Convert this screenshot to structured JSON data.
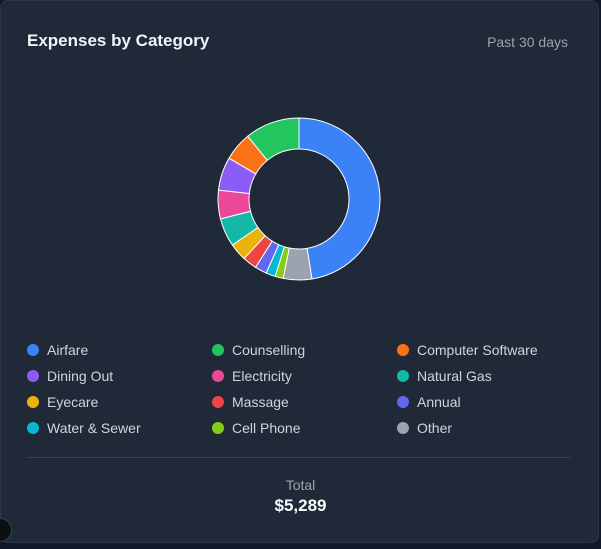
{
  "card": {
    "title": "Expenses by Category",
    "period": "Past 30 days"
  },
  "chart_data": {
    "type": "pie",
    "style": "donut",
    "categories": [
      "Airfare",
      "Other",
      "Cell Phone",
      "Water & Sewer",
      "Annual",
      "Massage",
      "Eyecare",
      "Natural Gas",
      "Electricity",
      "Dining Out",
      "Computer Software",
      "Counselling"
    ],
    "values": [
      50.0,
      6.0,
      1.7,
      2.0,
      2.5,
      3.0,
      3.7,
      6.0,
      6.0,
      7.0,
      6.0,
      11.5
    ],
    "colors": [
      "#3b82f6",
      "#9ca3af",
      "#84cc16",
      "#06b6d4",
      "#6366f1",
      "#ef4444",
      "#eab308",
      "#14b8a6",
      "#ec4899",
      "#8b5cf6",
      "#f97316",
      "#22c55e"
    ]
  },
  "legend": [
    {
      "label": "Airfare",
      "color": "#3b82f6"
    },
    {
      "label": "Counselling",
      "color": "#22c55e"
    },
    {
      "label": "Computer Software",
      "color": "#f97316"
    },
    {
      "label": "Dining Out",
      "color": "#8b5cf6"
    },
    {
      "label": "Electricity",
      "color": "#ec4899"
    },
    {
      "label": "Natural Gas",
      "color": "#14b8a6"
    },
    {
      "label": "Eyecare",
      "color": "#eab308"
    },
    {
      "label": "Massage",
      "color": "#ef4444"
    },
    {
      "label": "Annual",
      "color": "#6366f1"
    },
    {
      "label": "Water & Sewer",
      "color": "#06b6d4"
    },
    {
      "label": "Cell Phone",
      "color": "#84cc16"
    },
    {
      "label": "Other",
      "color": "#9ca3af"
    }
  ],
  "summary": {
    "total_label": "Total",
    "total_value": "$5,289"
  }
}
